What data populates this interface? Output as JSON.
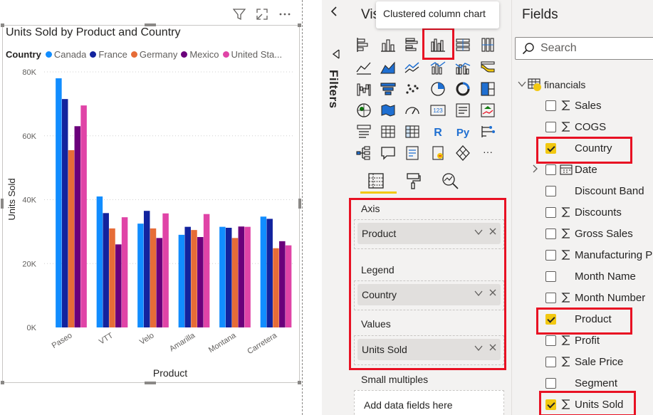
{
  "visual_header": {
    "icons": [
      "filter-icon",
      "focus-mode-icon",
      "more-options-icon"
    ]
  },
  "chart_data": {
    "type": "bar",
    "title": "Units Sold by Product and Country",
    "xlabel": "Product",
    "ylabel": "Units Sold",
    "ylim": [
      0,
      80000
    ],
    "yticks": [
      {
        "value": 0,
        "label": "0K"
      },
      {
        "value": 20000,
        "label": "20K"
      },
      {
        "value": 40000,
        "label": "40K"
      },
      {
        "value": 60000,
        "label": "60K"
      },
      {
        "value": 80000,
        "label": "80K"
      }
    ],
    "grid": true,
    "legend_title": "Country",
    "legend_position": "top-left",
    "categories": [
      "Paseo",
      "VTT",
      "Velo",
      "Amarilla",
      "Montana",
      "Carretera"
    ],
    "series": [
      {
        "name": "Canada",
        "display": "Canada",
        "color": "#118dff",
        "values": [
          78000,
          41000,
          32500,
          29000,
          31500,
          34700
        ]
      },
      {
        "name": "France",
        "display": "France",
        "color": "#12239e",
        "values": [
          71500,
          35800,
          36500,
          31500,
          31200,
          34000
        ]
      },
      {
        "name": "Germany",
        "display": "Germany",
        "color": "#e66c37",
        "values": [
          55500,
          31000,
          31000,
          30500,
          28000,
          24800
        ]
      },
      {
        "name": "Mexico",
        "display": "Mexico",
        "color": "#6b007b",
        "values": [
          63000,
          26000,
          28000,
          28300,
          31600,
          27000
        ]
      },
      {
        "name": "United States",
        "display": "United Sta...",
        "color": "#e044a7",
        "values": [
          69500,
          34500,
          35700,
          35500,
          31500,
          25700
        ]
      }
    ]
  },
  "viz_pane": {
    "title": "Vis",
    "tooltip": "Clustered column chart",
    "filters_label": "Filters",
    "icons": [
      "stacked-bar-chart-icon",
      "stacked-column-chart-icon",
      "clustered-bar-chart-icon",
      "clustered-column-chart-icon",
      "100-stacked-bar-chart-icon",
      "100-stacked-column-chart-icon",
      "line-chart-icon",
      "area-chart-icon",
      "stacked-area-chart-icon",
      "line-and-stacked-column-chart-icon",
      "line-and-clustered-column-chart-icon",
      "ribbon-chart-icon",
      "waterfall-chart-icon",
      "funnel-chart-icon",
      "scatter-chart-icon",
      "pie-chart-icon",
      "donut-chart-icon",
      "treemap-icon",
      "map-icon",
      "filled-map-icon",
      "gauge-icon",
      "card-icon",
      "multi-row-card-icon",
      "kpi-icon",
      "slicer-icon",
      "table-icon",
      "matrix-icon",
      "r-script-visual-icon",
      "python-visual-icon",
      "key-influencers-icon",
      "decomposition-tree-icon",
      "qa-visual-icon",
      "smart-narrative-icon",
      "paginated-report-icon",
      "power-apps-icon",
      "more-visuals-icon"
    ],
    "r_label": "R",
    "py_label": "Py",
    "more_label": "···",
    "tabs": [
      "fields-tab-icon",
      "format-tab-icon",
      "analytics-tab-icon"
    ],
    "wells": [
      {
        "label": "Axis",
        "value": "Product"
      },
      {
        "label": "Legend",
        "value": "Country"
      },
      {
        "label": "Values",
        "value": "Units Sold"
      }
    ],
    "small_multiples": {
      "label": "Small multiples",
      "placeholder": "Add data fields here"
    }
  },
  "fields_pane": {
    "title": "Fields",
    "search_placeholder": "Search",
    "table_name": "financials",
    "fields": [
      {
        "label": "Sales",
        "icon": "sigma-icon",
        "checked": false
      },
      {
        "label": "COGS",
        "icon": "sigma-icon",
        "checked": false
      },
      {
        "label": "Country",
        "icon": "none",
        "checked": true
      },
      {
        "label": "Date",
        "icon": "calendar-icon",
        "checked": false,
        "expandable": true
      },
      {
        "label": "Discount Band",
        "icon": "none",
        "checked": false
      },
      {
        "label": "Discounts",
        "icon": "sigma-icon",
        "checked": false
      },
      {
        "label": "Gross Sales",
        "icon": "sigma-icon",
        "checked": false
      },
      {
        "label": "Manufacturing P",
        "icon": "sigma-icon",
        "checked": false
      },
      {
        "label": "Month Name",
        "icon": "none",
        "checked": false
      },
      {
        "label": "Month Number",
        "icon": "sigma-icon",
        "checked": false
      },
      {
        "label": "Product",
        "icon": "none",
        "checked": true
      },
      {
        "label": "Profit",
        "icon": "sigma-icon",
        "checked": false
      },
      {
        "label": "Sale Price",
        "icon": "sigma-icon",
        "checked": false
      },
      {
        "label": "Segment",
        "icon": "none",
        "checked": false
      },
      {
        "label": "Units Sold",
        "icon": "sigma-icon",
        "checked": true
      }
    ]
  },
  "colors": {
    "highlight": "#e81123",
    "accent": "#f2c811",
    "pane": "#f3f2f1"
  }
}
